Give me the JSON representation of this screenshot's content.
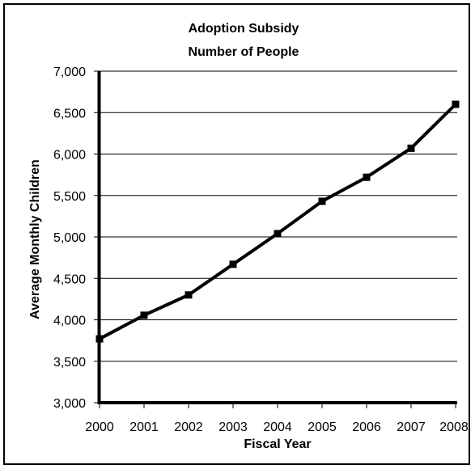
{
  "chart_data": {
    "type": "line",
    "title": "Adoption Subsidy",
    "subtitle": "Number of People",
    "xlabel": "Fiscal Year",
    "ylabel": "Average Monthly Children",
    "categories": [
      "2000",
      "2001",
      "2002",
      "2003",
      "2004",
      "2005",
      "2006",
      "2007",
      "2008"
    ],
    "series": [
      {
        "values": [
          3770,
          4055,
          4300,
          4670,
          5040,
          5430,
          5720,
          6070,
          6600
        ]
      }
    ],
    "ylim": [
      3000,
      7000
    ],
    "yticks": [
      3000,
      3500,
      4000,
      4500,
      5000,
      5500,
      6000,
      6500,
      7000
    ],
    "ytick_labels": [
      "3,000",
      "3,500",
      "4,000",
      "4,500",
      "5,000",
      "5,500",
      "6,000",
      "6,500",
      "7,000"
    ],
    "grid": "horizontal",
    "legend": "none",
    "colors": {
      "line": "#000000",
      "grid": "#000000",
      "background": "#ffffff"
    }
  }
}
